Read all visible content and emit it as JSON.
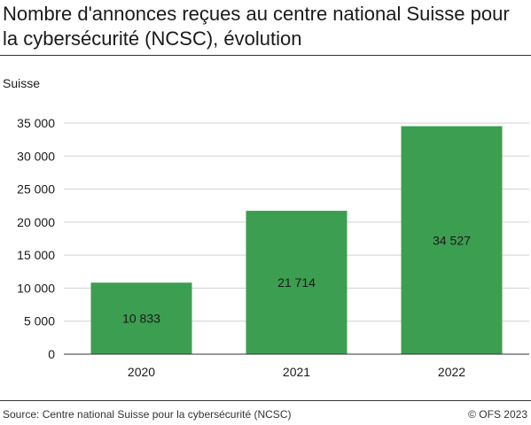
{
  "title": "Nombre d'annonces reçues au centre national Suisse pour la cybersécurité (NCSC), évolution",
  "subtitle": "Suisse",
  "footer": {
    "source": "Source:  Centre national Suisse pour la cybersécurité (NCSC)",
    "copyright": "© OFS 2023"
  },
  "colors": {
    "bar": "#3c9e50",
    "grid": "#d0d0d0",
    "axis": "#333333"
  },
  "chart_data": {
    "type": "bar",
    "categories": [
      "2020",
      "2021",
      "2022"
    ],
    "values": [
      10833,
      21714,
      34527
    ],
    "value_labels": [
      "10 833",
      "21 714",
      "34 527"
    ],
    "yticks": [
      0,
      5000,
      10000,
      15000,
      20000,
      25000,
      30000,
      35000
    ],
    "ytick_labels": [
      "0",
      "5 000",
      "10 000",
      "15 000",
      "20 000",
      "25 000",
      "30 000",
      "35 000"
    ],
    "ylim": [
      0,
      35000
    ],
    "grid": true,
    "legend": "none"
  }
}
